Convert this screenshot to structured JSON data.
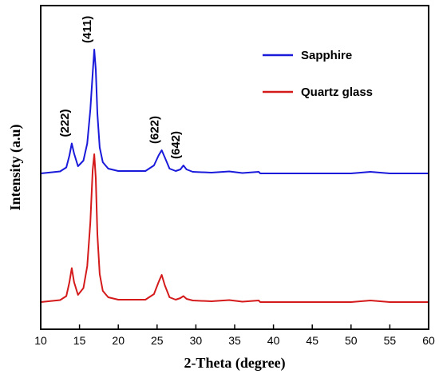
{
  "chart_data": {
    "type": "line",
    "xlabel": "2-Theta (degree)",
    "ylabel": "Intensity (a.u)",
    "xlim": [
      10,
      60
    ],
    "xticks": [
      10,
      15,
      20,
      25,
      30,
      35,
      40,
      45,
      50,
      55,
      60
    ],
    "y_tick_labels_shown": false,
    "grid": false,
    "legend_position": "top-right",
    "series": [
      {
        "name": "Sapphire",
        "color": "#1a1adb",
        "x": [
          10,
          12.5,
          13.3,
          13.7,
          14.0,
          14.3,
          14.8,
          15.5,
          16.0,
          16.4,
          16.7,
          16.9,
          17.1,
          17.3,
          17.6,
          18.0,
          18.7,
          20,
          23.5,
          24.6,
          25.2,
          25.6,
          26.0,
          26.6,
          27.4,
          28.0,
          28.4,
          28.8,
          29.6,
          32,
          34.3,
          36,
          38.1,
          38.3,
          40,
          50,
          52.5,
          55,
          60
        ],
        "values": [
          0,
          0.5,
          1.5,
          4.5,
          7.5,
          5.0,
          1.8,
          3.2,
          7.5,
          16,
          25,
          31,
          26,
          15,
          6.5,
          2.8,
          1.2,
          0.6,
          0.6,
          2.0,
          4.5,
          5.8,
          4.0,
          1.2,
          0.6,
          1.0,
          2.0,
          1.0,
          0.4,
          0.2,
          0.5,
          0.1,
          0.4,
          0,
          0,
          0,
          0.4,
          0,
          0
        ]
      },
      {
        "name": "Quartz glass",
        "color": "#d41a1a",
        "x": [
          10,
          12.5,
          13.3,
          13.7,
          14.0,
          14.3,
          14.8,
          15.5,
          16.0,
          16.4,
          16.7,
          16.9,
          17.1,
          17.3,
          17.6,
          18.0,
          18.7,
          20,
          23.5,
          24.6,
          25.2,
          25.6,
          26.0,
          26.6,
          27.4,
          28.0,
          28.4,
          28.8,
          29.6,
          32,
          34.3,
          36,
          38.1,
          38.3,
          40,
          50,
          52.5,
          55,
          60
        ],
        "values": [
          0,
          0.5,
          1.5,
          5.0,
          8.5,
          5.0,
          1.8,
          3.5,
          9.0,
          20,
          33,
          37,
          31,
          17,
          7.0,
          2.8,
          1.2,
          0.6,
          0.6,
          2.0,
          5.0,
          6.8,
          4.2,
          1.2,
          0.6,
          1.0,
          1.5,
          0.8,
          0.4,
          0.2,
          0.5,
          0.1,
          0.4,
          0,
          0,
          0,
          0.4,
          0,
          0
        ]
      }
    ],
    "annotations": [
      {
        "text": "(222)",
        "x": 14.0
      },
      {
        "text": "(411)",
        "x": 16.9
      },
      {
        "text": "(622)",
        "x": 25.6
      },
      {
        "text": "(642)",
        "x": 28.3
      }
    ]
  }
}
